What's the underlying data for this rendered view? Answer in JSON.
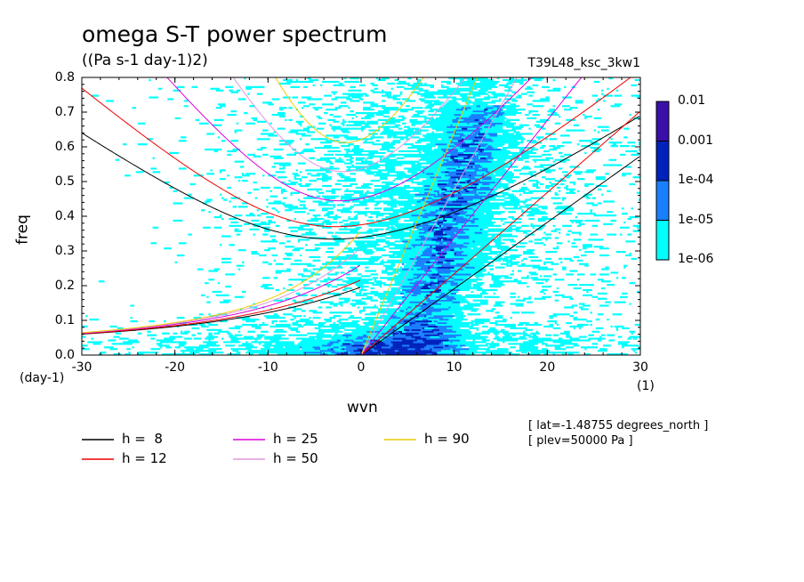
{
  "chart_data": {
    "type": "heatmap",
    "title": "omega S-T power spectrum",
    "subtitle": "((Pa s-1 day-1)2)",
    "run_label": "T39L48_ksc_3kw1",
    "xlabel": "wvn",
    "xunit": "(1)",
    "ylabel": "freq",
    "yunit": "(day-1)",
    "xlim": [
      -30,
      30
    ],
    "ylim": [
      0,
      0.8
    ],
    "x_ticks": [
      -30,
      -20,
      -10,
      0,
      10,
      20,
      30
    ],
    "y_ticks": [
      0.0,
      0.1,
      0.2,
      0.3,
      0.4,
      0.5,
      0.6,
      0.7,
      0.8
    ],
    "x_tick_labels": [
      "-30",
      "-20",
      "-10",
      "0",
      "10",
      "20",
      "30"
    ],
    "y_tick_labels": [
      "0.0",
      "0.1",
      "0.2",
      "0.3",
      "0.4",
      "0.5",
      "0.6",
      "0.7",
      "0.8"
    ],
    "colorbar": {
      "labels": [
        "1e-06",
        "1e-05",
        "1e-04",
        "0.001",
        "0.01"
      ],
      "colors": [
        "#00ffff",
        "#1a7fff",
        "#0022bb",
        "#3a10a8"
      ]
    },
    "equivalent_depths": [
      {
        "h": 8,
        "label": "h =  8",
        "color": "#000000"
      },
      {
        "h": 12,
        "label": "h = 12",
        "color": "#ee0000"
      },
      {
        "h": 25,
        "label": "h = 25",
        "color": "#dd00dd"
      },
      {
        "h": 50,
        "label": "h = 50",
        "color": "#dd99dd"
      },
      {
        "h": 90,
        "label": "h = 90",
        "color": "#eecc00"
      }
    ],
    "annotations": [
      "[ lat=-1.48755 degrees_north ]",
      "[ plev=50000 Pa ]"
    ]
  }
}
